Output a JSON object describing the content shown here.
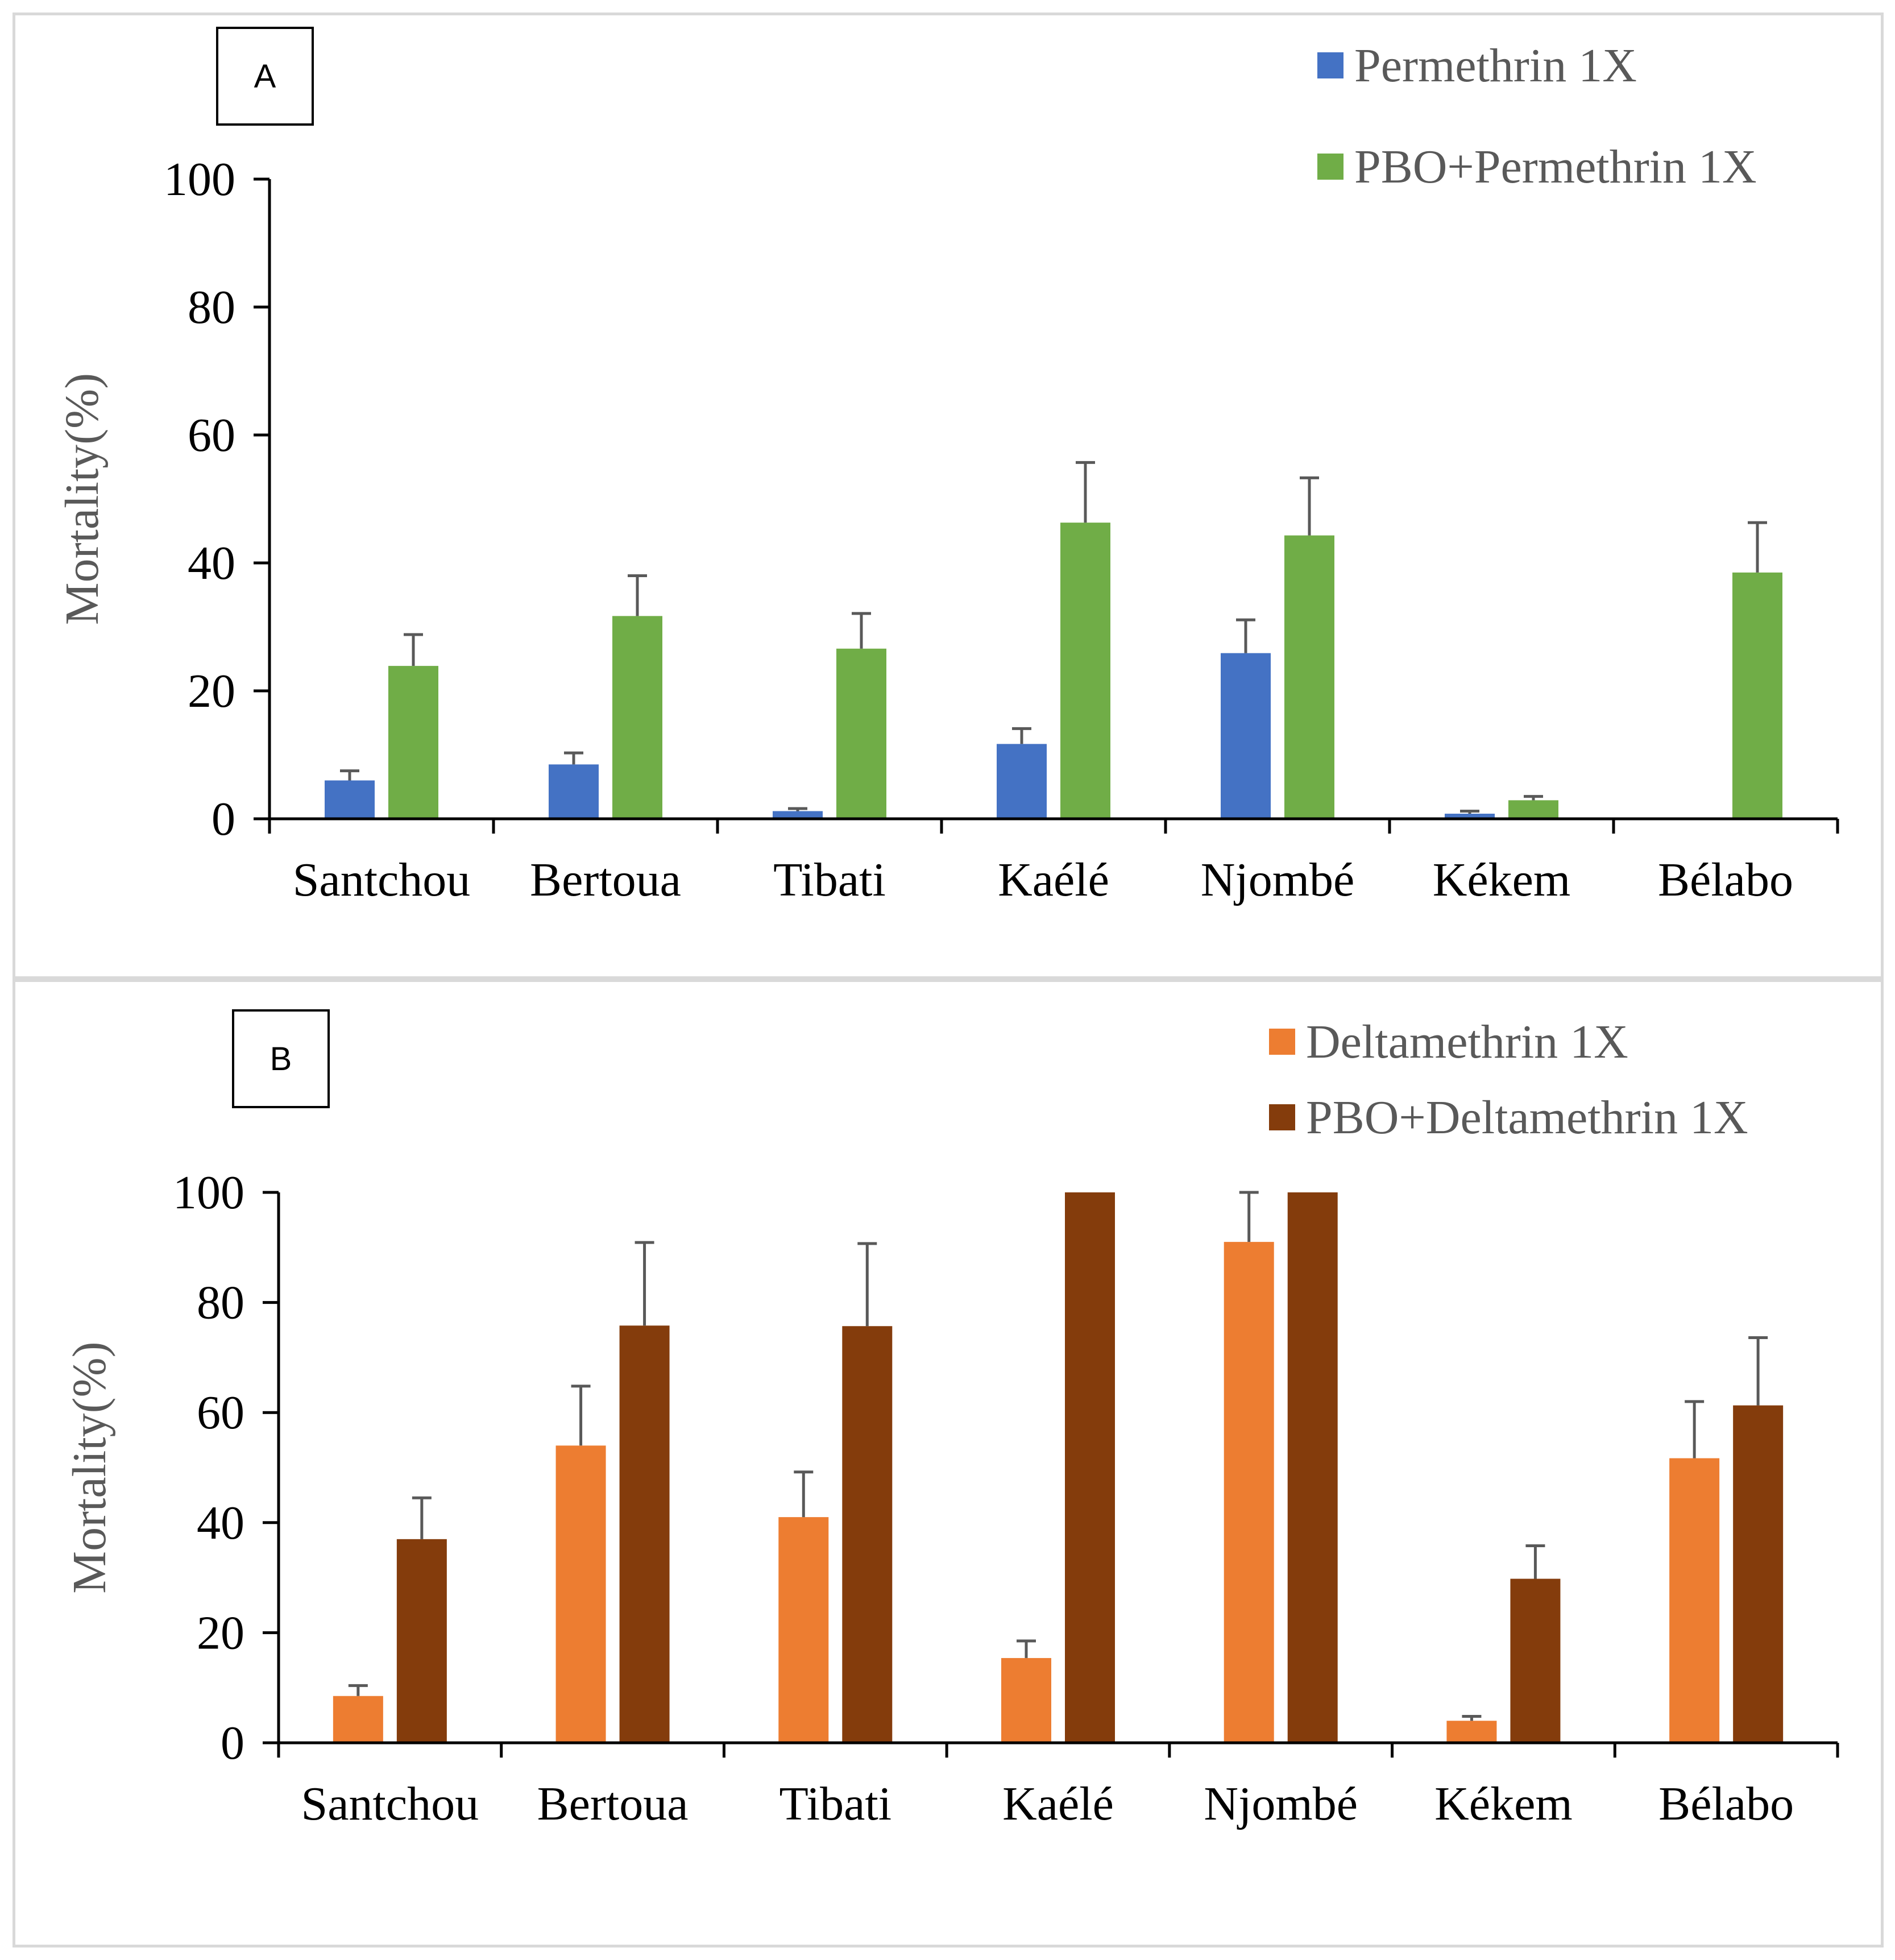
{
  "chart_data": [
    {
      "type": "bar",
      "panel_label": "A",
      "categories": [
        "Santchou",
        "Bertoua",
        "Tibati",
        "Kaélé",
        "Njombé",
        "Kékem",
        "Bélabo"
      ],
      "ylabel": "Mortality(%)",
      "xlabel": "",
      "ylim": [
        0,
        100
      ],
      "yticks": [
        0,
        20,
        40,
        60,
        80,
        100
      ],
      "legend_position": "top-right",
      "grid": false,
      "series": [
        {
          "name": "Permethrin 1X",
          "color": "#4472c4",
          "values": [
            6,
            8.5,
            1.2,
            11.7,
            25.9,
            0.8,
            0
          ],
          "errors": [
            1.5,
            1.8,
            0.4,
            2.4,
            5.2,
            0.4,
            0
          ]
        },
        {
          "name": "PBO+Permethrin 1X",
          "color": "#70ad47",
          "values": [
            23.9,
            31.7,
            26.6,
            46.3,
            44.3,
            2.9,
            38.5
          ],
          "errors": [
            4.9,
            6.3,
            5.5,
            9.4,
            9,
            0.6,
            7.8
          ]
        }
      ]
    },
    {
      "type": "bar",
      "panel_label": "B",
      "categories": [
        "Santchou",
        "Bertoua",
        "Tibati",
        "Kaélé",
        "Njombé",
        "Kékem",
        "Bélabo"
      ],
      "ylabel": "Mortality(%)",
      "xlabel": "",
      "ylim": [
        0,
        100
      ],
      "yticks": [
        0,
        20,
        40,
        60,
        80,
        100
      ],
      "legend_position": "top-right",
      "grid": false,
      "series": [
        {
          "name": "Deltamethrin 1X",
          "color": "#ed7d31",
          "values": [
            8.5,
            54,
            41,
            15.4,
            91,
            4,
            51.7
          ],
          "errors": [
            1.9,
            10.8,
            8.2,
            3.1,
            9,
            0.8,
            10.3
          ]
        },
        {
          "name": "PBO+Deltamethrin 1X",
          "color": "#843c0c",
          "values": [
            37,
            75.8,
            75.7,
            100,
            100,
            29.8,
            61.3
          ],
          "errors": [
            7.5,
            15.1,
            15,
            0,
            0,
            6,
            12.3
          ]
        }
      ]
    }
  ]
}
